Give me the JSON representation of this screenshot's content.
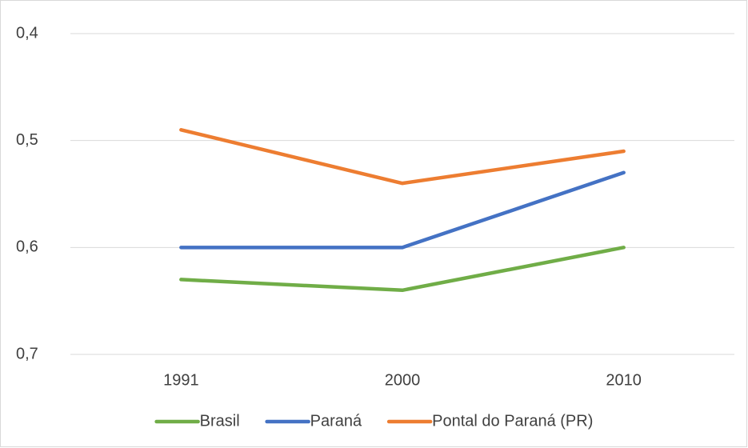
{
  "chart_data": {
    "type": "line",
    "categories": [
      "1991",
      "2000",
      "2010"
    ],
    "series": [
      {
        "name": "Brasil",
        "color": "#70ad47",
        "values": [
          0.63,
          0.64,
          0.6
        ]
      },
      {
        "name": "Paraná",
        "color": "#4472c4",
        "values": [
          0.6,
          0.6,
          0.53
        ]
      },
      {
        "name": "Pontal do Paraná (PR)",
        "color": "#ed7d31",
        "values": [
          0.49,
          0.54,
          0.51
        ]
      }
    ],
    "ylim": [
      0.4,
      0.7
    ],
    "y_inverted": true,
    "yticks": [
      {
        "value": 0.4,
        "label": "0,4"
      },
      {
        "value": 0.5,
        "label": "0,5"
      },
      {
        "value": 0.6,
        "label": "0,6"
      },
      {
        "value": 0.7,
        "label": "0,7"
      }
    ],
    "grid": true,
    "legend": "bottom"
  }
}
